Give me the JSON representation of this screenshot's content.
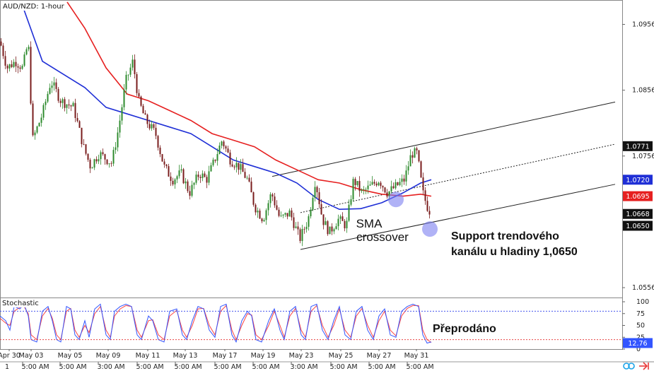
{
  "header": {
    "symbol_timeframe": "AUD/NZD: 1-hour"
  },
  "colors": {
    "up_candle": "#2e8b2e",
    "down_candle": "#7a1c1c",
    "sma_fast": "#1f2fd6",
    "sma_slow": "#e62020",
    "channel": "#222222",
    "highlight": "#7b7ff0",
    "stoch_k": "#3355ff",
    "stoch_d": "#ff4444"
  },
  "annotations": {
    "crossover_line1": "SMA",
    "crossover_line2": "crossover",
    "support_line1": "Support trendového",
    "support_line2": "kanálu u hladiny 1,0650",
    "oversold": "Přeprodáno"
  },
  "price_tags": {
    "upper": "1.0771",
    "sma_fast": "1.0720",
    "sma_slow": "1.0695",
    "last": "1.0668",
    "hidden": "1.0650"
  },
  "stoch_tag": "12.76",
  "footer_icons": [
    "sync-icon",
    "arrow-icon"
  ],
  "chart_data": [
    {
      "type": "candlestick",
      "title": "AUD/NZD: 1-hour",
      "y_axis_ticks": [
        "1.0956",
        "1.0856",
        "1.0756",
        "1.0556"
      ],
      "ylim": [
        1.0541,
        1.0992
      ],
      "x_axis_ticks_top": [
        "Apr 30",
        "May 03",
        "May 05",
        "May 09",
        "May 11",
        "May 13",
        "May 17",
        "May 19",
        "May 23",
        "May 25",
        "May 27",
        "May 31"
      ],
      "x_axis_ticks_bottom": [
        "5:00 AM",
        "5:00 AM",
        "3:00 AM",
        "5:00 AM",
        "5:00 AM",
        "5:00 AM",
        "5:00 AM",
        "3:00 AM",
        "5:00 AM",
        "5:00 AM",
        "5:00 AM"
      ],
      "x_axis_tick_first_bottom": "1",
      "close_path": [
        [
          0,
          1.093
        ],
        [
          10,
          1.089
        ],
        [
          22,
          1.09
        ],
        [
          32,
          1.089
        ],
        [
          40,
          1.093
        ],
        [
          46,
          1.078
        ],
        [
          60,
          1.082
        ],
        [
          72,
          1.087
        ],
        [
          86,
          1.084
        ],
        [
          104,
          1.083
        ],
        [
          118,
          1.077
        ],
        [
          128,
          1.074
        ],
        [
          140,
          1.076
        ],
        [
          158,
          1.0745
        ],
        [
          168,
          1.08
        ],
        [
          178,
          1.087
        ],
        [
          188,
          1.09
        ],
        [
          196,
          1.084
        ],
        [
          206,
          1.081
        ],
        [
          220,
          1.079
        ],
        [
          232,
          1.074
        ],
        [
          244,
          1.072
        ],
        [
          256,
          1.073
        ],
        [
          268,
          1.07
        ],
        [
          282,
          1.073
        ],
        [
          292,
          1.072
        ],
        [
          300,
          1.074
        ],
        [
          314,
          1.078
        ],
        [
          326,
          1.075
        ],
        [
          338,
          1.074
        ],
        [
          350,
          1.072
        ],
        [
          360,
          1.068
        ],
        [
          372,
          1.066
        ],
        [
          384,
          1.07
        ],
        [
          396,
          1.066
        ],
        [
          410,
          1.067
        ],
        [
          424,
          1.063
        ],
        [
          436,
          1.066
        ],
        [
          446,
          1.072
        ],
        [
          456,
          1.066
        ],
        [
          466,
          1.064
        ],
        [
          478,
          1.066
        ],
        [
          490,
          1.065
        ],
        [
          500,
          1.072
        ],
        [
          512,
          1.07
        ],
        [
          524,
          1.071
        ],
        [
          536,
          1.072
        ],
        [
          548,
          1.07
        ],
        [
          560,
          1.071
        ],
        [
          572,
          1.072
        ],
        [
          582,
          1.076
        ],
        [
          590,
          1.076
        ],
        [
          598,
          1.07
        ],
        [
          604,
          1.068
        ],
        [
          610,
          1.0668
        ]
      ],
      "sma_fast_path": [
        [
          30,
          1.099
        ],
        [
          60,
          1.09
        ],
        [
          90,
          1.088
        ],
        [
          120,
          1.086
        ],
        [
          150,
          1.083
        ],
        [
          180,
          1.082
        ],
        [
          210,
          1.081
        ],
        [
          240,
          1.08
        ],
        [
          270,
          1.079
        ],
        [
          300,
          1.077
        ],
        [
          330,
          1.075
        ],
        [
          360,
          1.074
        ],
        [
          390,
          1.073
        ],
        [
          420,
          1.0715
        ],
        [
          450,
          1.069
        ],
        [
          480,
          1.0675
        ],
        [
          510,
          1.0676
        ],
        [
          540,
          1.0685
        ],
        [
          570,
          1.07
        ],
        [
          595,
          1.0715
        ],
        [
          610,
          1.072
        ]
      ],
      "sma_slow_path": [
        [
          95,
          1.099
        ],
        [
          120,
          1.095
        ],
        [
          150,
          1.089
        ],
        [
          180,
          1.085
        ],
        [
          210,
          1.084
        ],
        [
          240,
          1.0825
        ],
        [
          270,
          1.081
        ],
        [
          300,
          1.079
        ],
        [
          330,
          1.078
        ],
        [
          360,
          1.077
        ],
        [
          390,
          1.075
        ],
        [
          420,
          1.0735
        ],
        [
          450,
          1.072
        ],
        [
          480,
          1.0715
        ],
        [
          510,
          1.0705
        ],
        [
          540,
          1.0698
        ],
        [
          570,
          1.0695
        ],
        [
          595,
          1.0698
        ],
        [
          610,
          1.0695
        ]
      ],
      "channel_lines": [
        {
          "style": "solid",
          "from": [
            385,
            1.0725
          ],
          "to": [
            870,
            1.0838
          ]
        },
        {
          "style": "dotted",
          "from": [
            425,
            1.067
          ],
          "to": [
            870,
            1.0774
          ]
        },
        {
          "style": "solid",
          "from": [
            425,
            1.0614
          ],
          "to": [
            870,
            1.0713
          ]
        }
      ],
      "highlights": [
        [
          560,
          1.069
        ],
        [
          608,
          1.0645
        ]
      ]
    },
    {
      "type": "line",
      "title": "Stochastic",
      "y_axis_ticks": [
        "100",
        "75",
        "50",
        "25",
        "0"
      ],
      "ylim": [
        0,
        100
      ],
      "reference_lines": [
        80,
        20
      ],
      "k_path": [
        [
          0,
          70
        ],
        [
          8,
          60
        ],
        [
          14,
          40
        ],
        [
          20,
          90
        ],
        [
          28,
          85
        ],
        [
          34,
          95
        ],
        [
          40,
          70
        ],
        [
          44,
          20
        ],
        [
          52,
          15
        ],
        [
          60,
          80
        ],
        [
          68,
          90
        ],
        [
          74,
          60
        ],
        [
          80,
          20
        ],
        [
          86,
          15
        ],
        [
          94,
          90
        ],
        [
          100,
          85
        ],
        [
          106,
          30
        ],
        [
          112,
          20
        ],
        [
          120,
          60
        ],
        [
          126,
          25
        ],
        [
          134,
          85
        ],
        [
          142,
          95
        ],
        [
          150,
          30
        ],
        [
          156,
          20
        ],
        [
          162,
          80
        ],
        [
          170,
          90
        ],
        [
          178,
          95
        ],
        [
          186,
          90
        ],
        [
          194,
          30
        ],
        [
          200,
          20
        ],
        [
          210,
          70
        ],
        [
          216,
          60
        ],
        [
          224,
          20
        ],
        [
          232,
          15
        ],
        [
          240,
          80
        ],
        [
          250,
          85
        ],
        [
          258,
          30
        ],
        [
          264,
          20
        ],
        [
          272,
          60
        ],
        [
          280,
          90
        ],
        [
          288,
          85
        ],
        [
          296,
          40
        ],
        [
          304,
          25
        ],
        [
          312,
          90
        ],
        [
          320,
          95
        ],
        [
          328,
          30
        ],
        [
          334,
          15
        ],
        [
          342,
          60
        ],
        [
          350,
          80
        ],
        [
          356,
          70
        ],
        [
          362,
          20
        ],
        [
          370,
          15
        ],
        [
          380,
          60
        ],
        [
          388,
          85
        ],
        [
          396,
          40
        ],
        [
          402,
          20
        ],
        [
          410,
          80
        ],
        [
          418,
          90
        ],
        [
          426,
          30
        ],
        [
          432,
          20
        ],
        [
          440,
          90
        ],
        [
          448,
          95
        ],
        [
          456,
          40
        ],
        [
          464,
          20
        ],
        [
          472,
          60
        ],
        [
          480,
          90
        ],
        [
          488,
          30
        ],
        [
          496,
          20
        ],
        [
          504,
          80
        ],
        [
          512,
          90
        ],
        [
          520,
          40
        ],
        [
          528,
          20
        ],
        [
          536,
          70
        ],
        [
          544,
          85
        ],
        [
          552,
          30
        ],
        [
          560,
          25
        ],
        [
          568,
          80
        ],
        [
          576,
          90
        ],
        [
          584,
          95
        ],
        [
          592,
          90
        ],
        [
          598,
          30
        ],
        [
          604,
          12.76
        ],
        [
          610,
          15
        ]
      ],
      "d_path": [
        [
          0,
          65
        ],
        [
          8,
          55
        ],
        [
          14,
          50
        ],
        [
          20,
          80
        ],
        [
          28,
          88
        ],
        [
          34,
          90
        ],
        [
          40,
          75
        ],
        [
          44,
          30
        ],
        [
          52,
          20
        ],
        [
          60,
          70
        ],
        [
          68,
          86
        ],
        [
          74,
          65
        ],
        [
          80,
          30
        ],
        [
          86,
          20
        ],
        [
          94,
          80
        ],
        [
          100,
          86
        ],
        [
          106,
          40
        ],
        [
          112,
          25
        ],
        [
          120,
          50
        ],
        [
          126,
          35
        ],
        [
          134,
          75
        ],
        [
          142,
          90
        ],
        [
          150,
          40
        ],
        [
          156,
          25
        ],
        [
          162,
          70
        ],
        [
          170,
          85
        ],
        [
          178,
          92
        ],
        [
          186,
          90
        ],
        [
          194,
          40
        ],
        [
          200,
          25
        ],
        [
          210,
          60
        ],
        [
          216,
          62
        ],
        [
          224,
          30
        ],
        [
          232,
          20
        ],
        [
          240,
          70
        ],
        [
          250,
          82
        ],
        [
          258,
          40
        ],
        [
          264,
          25
        ],
        [
          272,
          50
        ],
        [
          280,
          85
        ],
        [
          288,
          86
        ],
        [
          296,
          50
        ],
        [
          304,
          30
        ],
        [
          312,
          80
        ],
        [
          320,
          92
        ],
        [
          328,
          40
        ],
        [
          334,
          20
        ],
        [
          342,
          50
        ],
        [
          350,
          75
        ],
        [
          356,
          72
        ],
        [
          362,
          30
        ],
        [
          370,
          20
        ],
        [
          380,
          50
        ],
        [
          388,
          80
        ],
        [
          396,
          50
        ],
        [
          402,
          25
        ],
        [
          410,
          70
        ],
        [
          418,
          86
        ],
        [
          426,
          40
        ],
        [
          432,
          25
        ],
        [
          440,
          80
        ],
        [
          448,
          92
        ],
        [
          456,
          50
        ],
        [
          464,
          25
        ],
        [
          472,
          50
        ],
        [
          480,
          85
        ],
        [
          488,
          40
        ],
        [
          496,
          25
        ],
        [
          504,
          70
        ],
        [
          512,
          86
        ],
        [
          520,
          50
        ],
        [
          528,
          25
        ],
        [
          536,
          60
        ],
        [
          544,
          80
        ],
        [
          552,
          40
        ],
        [
          560,
          28
        ],
        [
          568,
          70
        ],
        [
          576,
          86
        ],
        [
          584,
          92
        ],
        [
          592,
          92
        ],
        [
          598,
          40
        ],
        [
          604,
          20
        ],
        [
          610,
          14
        ]
      ]
    }
  ]
}
